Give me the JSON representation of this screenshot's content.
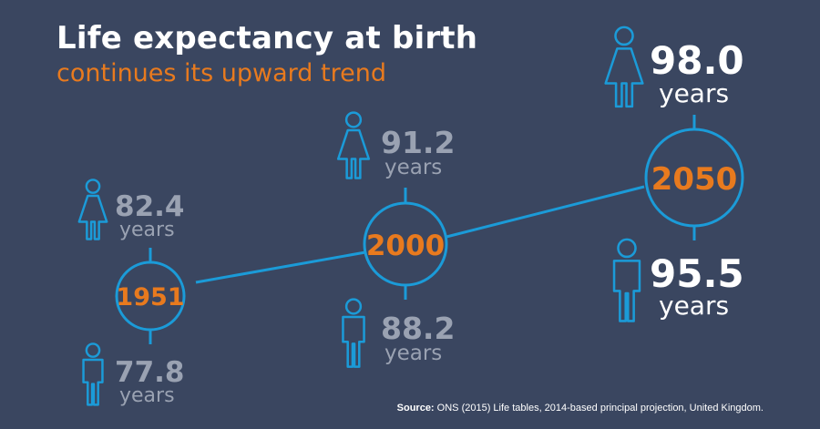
{
  "title": "Life expectancy at birth",
  "subtitle": "continues its upward trend",
  "colors": {
    "background": "#3a4660",
    "accent": "#e87a1e",
    "line": "#1b9bd8",
    "muted_text": "#9aa2b2",
    "text": "#ffffff"
  },
  "milestones": [
    {
      "year": "1951",
      "female": {
        "value": "82.4",
        "unit": "years",
        "icon": "female-person-icon"
      },
      "male": {
        "value": "77.8",
        "unit": "years",
        "icon": "male-person-icon"
      }
    },
    {
      "year": "2000",
      "female": {
        "value": "91.2",
        "unit": "years",
        "icon": "female-person-icon"
      },
      "male": {
        "value": "88.2",
        "unit": "years",
        "icon": "male-person-icon"
      }
    },
    {
      "year": "2050",
      "female": {
        "value": "98.0",
        "unit": "years",
        "icon": "female-person-icon"
      },
      "male": {
        "value": "95.5",
        "unit": "years",
        "icon": "male-person-icon"
      }
    }
  ],
  "source": {
    "label": "Source:",
    "text": "ONS (2015) Life tables, 2014-based principal projection, United Kingdom."
  }
}
